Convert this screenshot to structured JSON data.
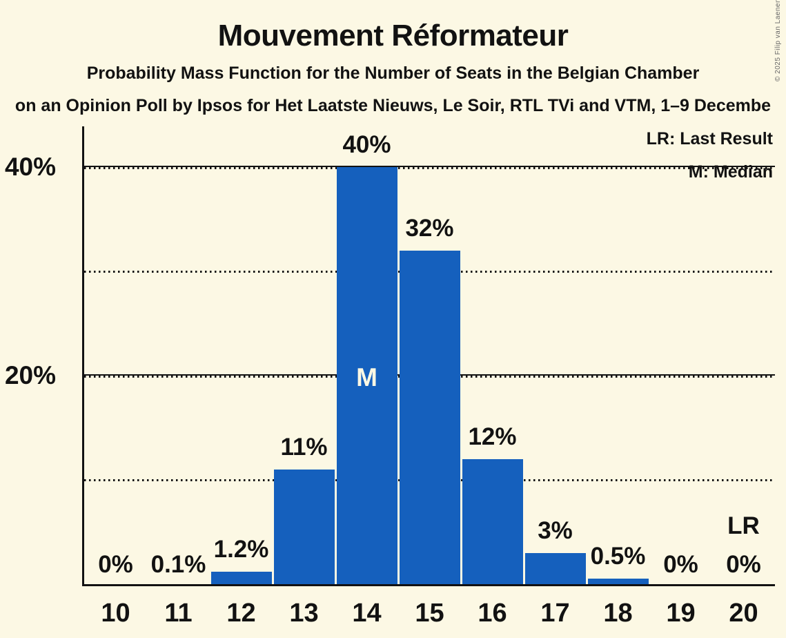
{
  "header": {
    "title": "Mouvement Réformateur",
    "subtitle": "Probability Mass Function for the Number of Seats in the Belgian Chamber",
    "subtitle2": "on an Opinion Poll by Ipsos for Het Laatste Nieuws, Le Soir, RTL TVi and VTM, 1–9 Decembe"
  },
  "copyright": "© 2025 Filip van Laenen",
  "legend": {
    "lr": "LR: Last Result",
    "m": "M: Median"
  },
  "colors": {
    "background": "#FCF8E4",
    "bar": "#1560BD",
    "text": "#121212",
    "copyright_text": "#666666",
    "median_letter": "#FCF8E4"
  },
  "chart_data": {
    "type": "bar",
    "title": "Mouvement Réformateur",
    "categories": [
      "10",
      "11",
      "12",
      "13",
      "14",
      "15",
      "16",
      "17",
      "18",
      "19",
      "20"
    ],
    "values": [
      0,
      0.1,
      1.2,
      11,
      40,
      32,
      12,
      3,
      0.5,
      0,
      0
    ],
    "bar_labels": [
      "0%",
      "0.1%",
      "1.2%",
      "11%",
      "40%",
      "32%",
      "12%",
      "3%",
      "0.5%",
      "0%",
      "0%"
    ],
    "y_ticks": [
      {
        "value": 40,
        "label": "40%"
      },
      {
        "value": 20,
        "label": "20%"
      }
    ],
    "solid_gridlines": [
      40,
      20
    ],
    "dotted_gridlines": [
      30,
      10
    ],
    "ylim": [
      0,
      44
    ],
    "grid": "horizontal",
    "legend_position": "top-right",
    "legend_entries": [
      "LR: Last Result",
      "M: Median"
    ],
    "median_category": "14",
    "median_marker": "M",
    "last_result_category": "20",
    "last_result_marker": "LR"
  }
}
